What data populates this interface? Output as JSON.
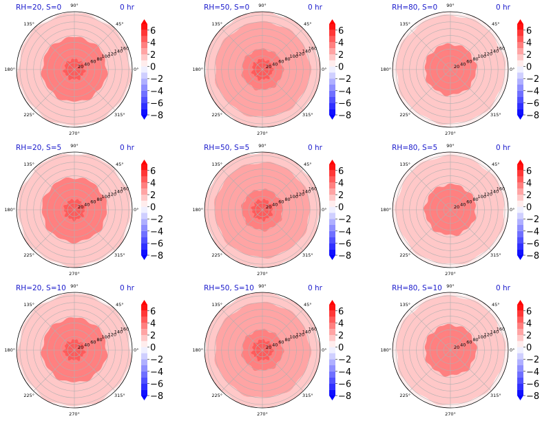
{
  "figure": {
    "colors": {
      "title": "#1a1acc",
      "axis_edge": "#000000",
      "grid": "#b0b0b0",
      "background": "#ffffff"
    },
    "colorbar": {
      "ticks": [
        "6",
        "4",
        "2",
        "0",
        "−2",
        "−4",
        "−6",
        "−8"
      ],
      "tick_values": [
        6,
        4,
        2,
        0,
        -2,
        -4,
        -6,
        -8
      ],
      "range": [
        -8,
        7
      ],
      "levels": [
        -8,
        -7,
        -6,
        -5,
        -4,
        -3,
        -2,
        -1,
        0,
        1,
        2,
        3,
        4,
        5,
        6,
        7
      ],
      "colormap": "bwr",
      "extend": "both"
    },
    "polar": {
      "angle_labels": [
        "90°",
        "45°",
        "0°",
        "315°",
        "270°",
        "225°",
        "180°",
        "135°"
      ],
      "angle_values": [
        90,
        45,
        0,
        315,
        270,
        225,
        180,
        135
      ],
      "radial_labels": [
        "20",
        "40",
        "60",
        "80",
        "100",
        "120",
        "140",
        "160"
      ],
      "radial_values": [
        20,
        40,
        60,
        80,
        100,
        120,
        140,
        160
      ],
      "rmax": 170,
      "radial_label_angle_deg": 22.5
    }
  },
  "chart_data": [
    {
      "type": "heatmap",
      "projection": "polar",
      "title_left": "RH=20, S=0",
      "title_right": "0 hr",
      "field_levels": [
        {
          "r_range": [
            0,
            30
          ],
          "value": 4.5
        },
        {
          "r_range": [
            30,
            95
          ],
          "value": 3.5
        },
        {
          "r_range": [
            95,
            165
          ],
          "value": 1.5
        },
        {
          "r_range": [
            165,
            170
          ],
          "value": 0.5
        }
      ]
    },
    {
      "type": "heatmap",
      "projection": "polar",
      "title_left": "RH=50, S=0",
      "title_right": "0 hr",
      "field_levels": [
        {
          "r_range": [
            0,
            30
          ],
          "value": 4.5
        },
        {
          "r_range": [
            30,
            60
          ],
          "value": 3.5
        },
        {
          "r_range": [
            60,
            140
          ],
          "value": 2.5
        },
        {
          "r_range": [
            140,
            170
          ],
          "value": 1.5
        }
      ]
    },
    {
      "type": "heatmap",
      "projection": "polar",
      "title_left": "RH=80, S=0",
      "title_right": "0 hr",
      "field_levels": [
        {
          "r_range": [
            0,
            75
          ],
          "value": 3.5
        },
        {
          "r_range": [
            75,
            160
          ],
          "value": 1.5
        },
        {
          "r_range": [
            160,
            170
          ],
          "value": 0.5
        }
      ]
    },
    {
      "type": "heatmap",
      "projection": "polar",
      "title_left": "RH=20, S=5",
      "title_right": "0 hr",
      "field_levels": [
        {
          "r_range": [
            0,
            30
          ],
          "value": 4.5
        },
        {
          "r_range": [
            30,
            95
          ],
          "value": 3.5
        },
        {
          "r_range": [
            95,
            165
          ],
          "value": 1.5
        },
        {
          "r_range": [
            165,
            170
          ],
          "value": 0.5
        }
      ]
    },
    {
      "type": "heatmap",
      "projection": "polar",
      "title_left": "RH=50, S=5",
      "title_right": "0 hr",
      "field_levels": [
        {
          "r_range": [
            0,
            30
          ],
          "value": 4.5
        },
        {
          "r_range": [
            30,
            60
          ],
          "value": 3.5
        },
        {
          "r_range": [
            60,
            140
          ],
          "value": 2.5
        },
        {
          "r_range": [
            140,
            170
          ],
          "value": 1.5
        }
      ]
    },
    {
      "type": "heatmap",
      "projection": "polar",
      "title_left": "RH=80, S=5",
      "title_right": "0 hr",
      "field_levels": [
        {
          "r_range": [
            0,
            75
          ],
          "value": 3.5
        },
        {
          "r_range": [
            75,
            160
          ],
          "value": 1.5
        },
        {
          "r_range": [
            160,
            170
          ],
          "value": 0.5
        }
      ]
    },
    {
      "type": "heatmap",
      "projection": "polar",
      "title_left": "RH=20, S=10",
      "title_right": "0 hr",
      "field_levels": [
        {
          "r_range": [
            0,
            30
          ],
          "value": 4.5
        },
        {
          "r_range": [
            30,
            95
          ],
          "value": 3.5
        },
        {
          "r_range": [
            95,
            165
          ],
          "value": 1.5
        },
        {
          "r_range": [
            165,
            170
          ],
          "value": 0.5
        }
      ]
    },
    {
      "type": "heatmap",
      "projection": "polar",
      "title_left": "RH=50, S=10",
      "title_right": "0 hr",
      "field_levels": [
        {
          "r_range": [
            0,
            30
          ],
          "value": 4.5
        },
        {
          "r_range": [
            30,
            60
          ],
          "value": 3.5
        },
        {
          "r_range": [
            60,
            140
          ],
          "value": 2.5
        },
        {
          "r_range": [
            140,
            170
          ],
          "value": 1.5
        }
      ]
    },
    {
      "type": "heatmap",
      "projection": "polar",
      "title_left": "RH=80, S=10",
      "title_right": "0 hr",
      "field_levels": [
        {
          "r_range": [
            0,
            75
          ],
          "value": 3.5
        },
        {
          "r_range": [
            75,
            160
          ],
          "value": 1.5
        },
        {
          "r_range": [
            160,
            170
          ],
          "value": 0.5
        }
      ]
    }
  ]
}
